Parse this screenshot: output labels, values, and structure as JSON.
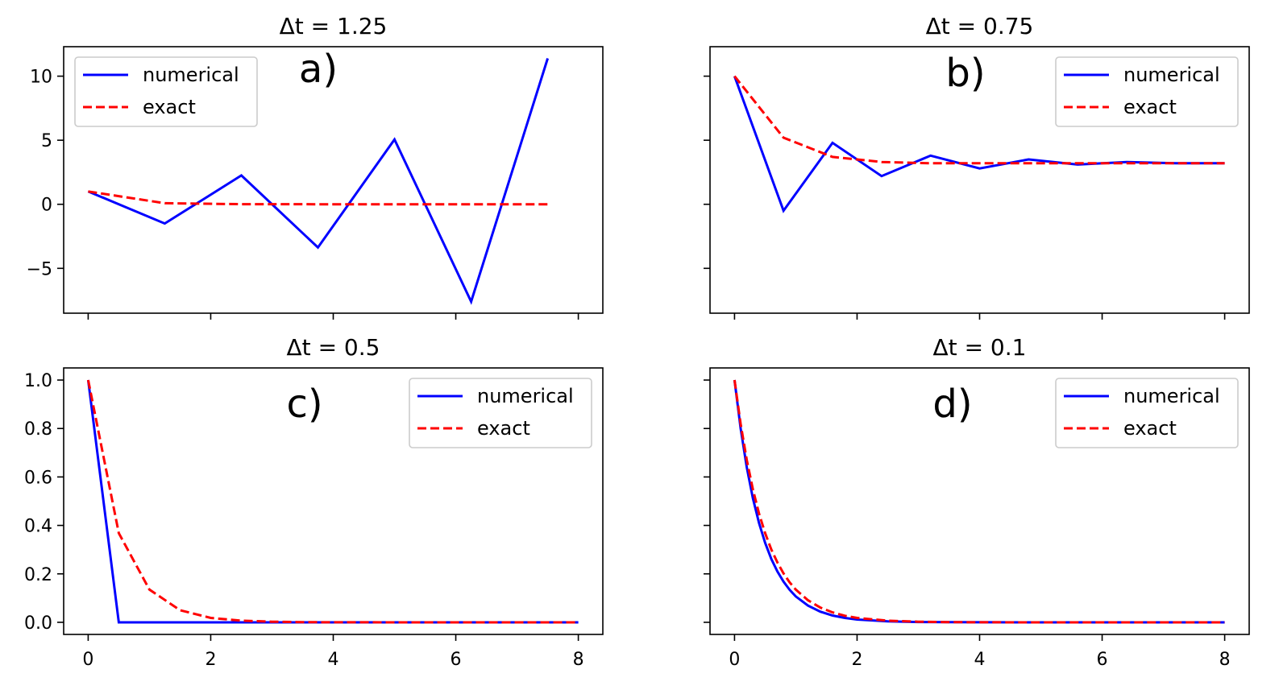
{
  "chart_data": [
    {
      "type": "line",
      "title": "Δt = 1.25",
      "panel_label": "a)",
      "xlim": [
        -0.4,
        8.4
      ],
      "ylim": [
        -8.5,
        12.3
      ],
      "xticks": [
        0,
        2,
        4,
        6,
        8
      ],
      "yticks": [
        -5,
        0,
        5,
        10
      ],
      "show_xticklabels": false,
      "show_yticklabels": true,
      "legend_position": "top-left",
      "series": [
        {
          "name": "numerical",
          "color": "#0000ff",
          "style": "solid",
          "x": [
            0,
            1.25,
            2.5,
            3.75,
            5.0,
            6.25,
            7.5
          ],
          "y": [
            1,
            -1.5,
            2.25,
            -3.375,
            5.0625,
            -7.594,
            11.39
          ]
        },
        {
          "name": "exact",
          "color": "#ff0000",
          "style": "dashed",
          "x": [
            0,
            1.25,
            2.5,
            3.75,
            5.0,
            6.25,
            7.5
          ],
          "y": [
            1,
            0.082,
            0.007,
            0.0006,
            5e-05,
            0,
            0
          ]
        }
      ]
    },
    {
      "type": "line",
      "title": "Δt = 0.75",
      "panel_label": "b)",
      "xlim": [
        -0.4,
        8.4
      ],
      "ylim": [
        -8.5,
        12.3
      ],
      "xticks": [
        0,
        2,
        4,
        6,
        8
      ],
      "yticks": [
        -5,
        0,
        5,
        10
      ],
      "show_xticklabels": false,
      "show_yticklabels": false,
      "legend_position": "top-right",
      "series": [
        {
          "name": "numerical",
          "color": "#0000ff",
          "style": "solid",
          "x": [
            0,
            0.8,
            1.6,
            2.4,
            3.2,
            4.0,
            4.8,
            5.6,
            6.4,
            7.2,
            8.0
          ],
          "y": [
            10,
            -0.5,
            4.8,
            2.2,
            3.8,
            2.8,
            3.5,
            3.1,
            3.3,
            3.2,
            3.2
          ]
        },
        {
          "name": "exact",
          "color": "#ff0000",
          "style": "dashed",
          "x": [
            0,
            0.8,
            1.6,
            2.4,
            3.2,
            4.0,
            4.8,
            5.6,
            6.4,
            7.2,
            8.0
          ],
          "y": [
            10,
            5.2,
            3.7,
            3.3,
            3.2,
            3.2,
            3.2,
            3.2,
            3.2,
            3.2,
            3.2
          ]
        }
      ]
    },
    {
      "type": "line",
      "title": "Δt = 0.5",
      "panel_label": "c)",
      "xlim": [
        -0.4,
        8.4
      ],
      "ylim": [
        -0.05,
        1.05
      ],
      "xticks": [
        0,
        2,
        4,
        6,
        8
      ],
      "yticks": [
        0.0,
        0.2,
        0.4,
        0.6,
        0.8,
        1.0
      ],
      "xticklabels": [
        "0",
        "2",
        "4",
        "6",
        "8"
      ],
      "yticklabels": [
        "0.0",
        "0.2",
        "0.4",
        "0.6",
        "0.8",
        "1.0"
      ],
      "show_xticklabels": true,
      "show_yticklabels": true,
      "legend_position": "top-right",
      "series": [
        {
          "name": "numerical",
          "color": "#0000ff",
          "style": "solid",
          "x": [
            0,
            0.5,
            1,
            1.5,
            2,
            2.5,
            3,
            3.5,
            4,
            4.5,
            5,
            5.5,
            6,
            6.5,
            7,
            7.5,
            8
          ],
          "y": [
            1,
            0,
            0,
            0,
            0,
            0,
            0,
            0,
            0,
            0,
            0,
            0,
            0,
            0,
            0,
            0,
            0
          ]
        },
        {
          "name": "exact",
          "color": "#ff0000",
          "style": "dashed",
          "x": [
            0,
            0.5,
            1,
            1.5,
            2,
            2.5,
            3,
            3.5,
            4,
            4.5,
            5,
            5.5,
            6,
            6.5,
            7,
            7.5,
            8
          ],
          "y": [
            1,
            0.368,
            0.135,
            0.05,
            0.018,
            0.0067,
            0.0025,
            0.0009,
            0.0003,
            0.0001,
            0,
            0,
            0,
            0,
            0,
            0,
            0
          ]
        }
      ]
    },
    {
      "type": "line",
      "title": "Δt = 0.1",
      "panel_label": "d)",
      "xlim": [
        -0.4,
        8.4
      ],
      "ylim": [
        -0.05,
        1.05
      ],
      "xticks": [
        0,
        2,
        4,
        6,
        8
      ],
      "yticks": [
        0.0,
        0.2,
        0.4,
        0.6,
        0.8,
        1.0
      ],
      "xticklabels": [
        "0",
        "2",
        "4",
        "6",
        "8"
      ],
      "show_xticklabels": true,
      "show_yticklabels": false,
      "legend_position": "top-right",
      "series": [
        {
          "name": "numerical",
          "color": "#0000ff",
          "style": "solid",
          "x": [
            0,
            0.1,
            0.2,
            0.3,
            0.4,
            0.5,
            0.6,
            0.7,
            0.8,
            0.9,
            1.0,
            1.2,
            1.4,
            1.6,
            1.8,
            2.0,
            2.5,
            3.0,
            3.5,
            4.0,
            5.0,
            6.0,
            7.0,
            8.0
          ],
          "y": [
            1,
            0.8,
            0.64,
            0.512,
            0.41,
            0.328,
            0.262,
            0.21,
            0.168,
            0.134,
            0.107,
            0.069,
            0.044,
            0.028,
            0.018,
            0.0115,
            0.0038,
            0.0012,
            0.0004,
            0.0001,
            0,
            0,
            0,
            0
          ]
        },
        {
          "name": "exact",
          "color": "#ff0000",
          "style": "dashed",
          "x": [
            0,
            0.1,
            0.2,
            0.3,
            0.4,
            0.5,
            0.6,
            0.7,
            0.8,
            0.9,
            1.0,
            1.2,
            1.4,
            1.6,
            1.8,
            2.0,
            2.5,
            3.0,
            3.5,
            4.0,
            5.0,
            6.0,
            7.0,
            8.0
          ],
          "y": [
            1,
            0.819,
            0.67,
            0.549,
            0.449,
            0.368,
            0.301,
            0.247,
            0.202,
            0.165,
            0.135,
            0.091,
            0.061,
            0.041,
            0.027,
            0.018,
            0.0067,
            0.0025,
            0.0009,
            0.0003,
            0,
            0,
            0,
            0
          ]
        }
      ]
    }
  ]
}
